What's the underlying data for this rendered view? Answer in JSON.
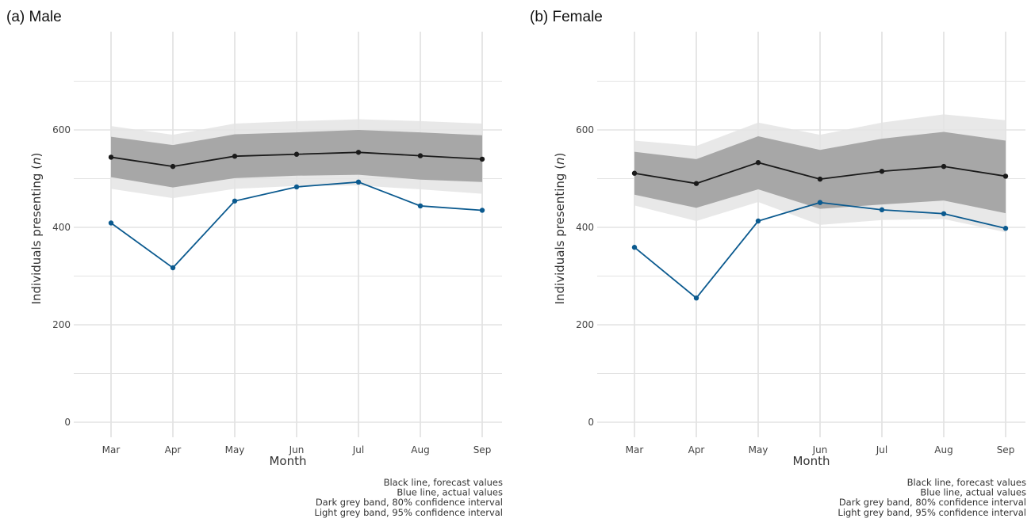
{
  "colors": {
    "forecast_line": "#1a1a1a",
    "actual_line": "#0b5a8f",
    "band_80": "#a3a3a3",
    "band_95": "#e4e4e4",
    "grid": "#e3e3e3"
  },
  "chart_data": [
    {
      "type": "line",
      "title": "(a) Male",
      "xlabel": "Month",
      "ylabel_prefix": "Individuals presenting (",
      "ylabel_italic": "n",
      "ylabel_suffix": ")",
      "categories": [
        "Mar",
        "Apr",
        "May",
        "Jun",
        "Jul",
        "Aug",
        "Sep"
      ],
      "yticks": [
        0,
        200,
        400,
        600
      ],
      "ylim": [
        0,
        700
      ],
      "grid": true,
      "series": [
        {
          "key": "forecast",
          "values": [
            544,
            525,
            546,
            550,
            554,
            547,
            540
          ]
        },
        {
          "key": "actual",
          "values": [
            409,
            317,
            454,
            483,
            493,
            444,
            435
          ]
        }
      ],
      "bands": [
        {
          "key": "ci95",
          "lower": [
            479,
            460,
            479,
            485,
            486,
            478,
            469
          ],
          "upper": [
            608,
            590,
            613,
            618,
            622,
            618,
            613
          ]
        },
        {
          "key": "ci80",
          "lower": [
            503,
            482,
            501,
            506,
            508,
            498,
            493
          ],
          "upper": [
            586,
            569,
            591,
            595,
            600,
            595,
            589
          ]
        }
      ],
      "caption": [
        "Black line, forecast values",
        "Blue line, actual values",
        "Dark grey band, 80% confidence interval",
        "Light grey band, 95% confidence interval"
      ]
    },
    {
      "type": "line",
      "title": "(b) Female",
      "xlabel": "Month",
      "ylabel_prefix": "Individuals presenting (",
      "ylabel_italic": "n",
      "ylabel_suffix": ")",
      "categories": [
        "Mar",
        "Apr",
        "May",
        "Jun",
        "Jul",
        "Aug",
        "Sep"
      ],
      "yticks": [
        0,
        200,
        400,
        600
      ],
      "ylim": [
        0,
        700
      ],
      "grid": true,
      "series": [
        {
          "key": "forecast",
          "values": [
            511,
            490,
            533,
            499,
            515,
            525,
            505
          ]
        },
        {
          "key": "actual",
          "values": [
            359,
            255,
            413,
            451,
            436,
            428,
            398
          ]
        }
      ],
      "bands": [
        {
          "key": "ci95",
          "lower": [
            445,
            413,
            452,
            405,
            415,
            417,
            390
          ],
          "upper": [
            578,
            567,
            615,
            590,
            615,
            632,
            620
          ]
        },
        {
          "key": "ci80",
          "lower": [
            467,
            440,
            478,
            438,
            447,
            455,
            429
          ],
          "upper": [
            555,
            540,
            587,
            559,
            582,
            596,
            578
          ]
        }
      ],
      "caption": [
        "Black line, forecast values",
        "Blue line, actual values",
        "Dark grey band, 80% confidence interval",
        "Light grey band, 95% confidence interval"
      ]
    }
  ]
}
